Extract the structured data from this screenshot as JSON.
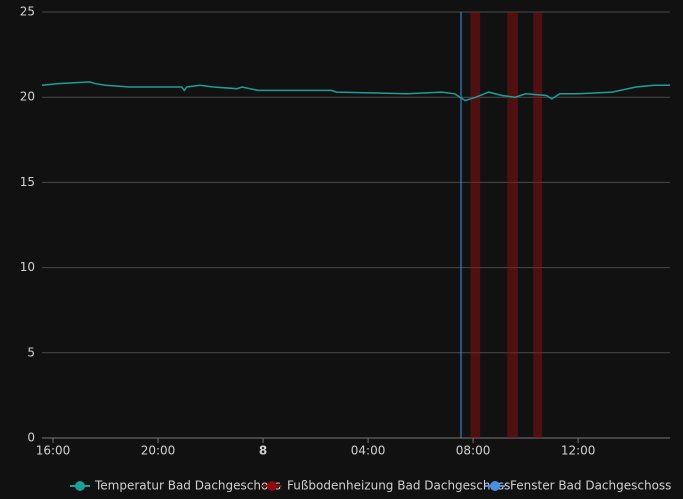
{
  "chart_data": {
    "type": "history",
    "xlim": [
      15.58,
      39.5
    ],
    "xticks": [
      {
        "value": 16,
        "label": "16:00"
      },
      {
        "value": 20,
        "label": "20:00"
      },
      {
        "value": 24,
        "label": "8"
      },
      {
        "value": 28,
        "label": "04:00"
      },
      {
        "value": 32,
        "label": "08:00"
      },
      {
        "value": 36,
        "label": "12:00"
      }
    ],
    "ylim": [
      0,
      25
    ],
    "yticks": [
      0,
      5,
      10,
      15,
      20,
      25
    ],
    "grid": true,
    "legend": "bottom",
    "series": [
      {
        "name": "Temperatur Bad Dachgeschoss",
        "color": "#1f9e98",
        "x": [
          15.58,
          16.2,
          17.4,
          17.6,
          18.0,
          18.9,
          20.9,
          21.0,
          21.1,
          21.6,
          22.1,
          23.0,
          23.2,
          23.8,
          26.6,
          26.8,
          29.5,
          30.8,
          31.3,
          31.7,
          32.1,
          32.6,
          33.1,
          33.6,
          34.0,
          34.8,
          35.0,
          35.3,
          36.0,
          37.3,
          38.2,
          38.9,
          39.5
        ],
        "values": [
          20.7,
          20.8,
          20.9,
          20.8,
          20.7,
          20.6,
          20.6,
          20.4,
          20.6,
          20.7,
          20.6,
          20.5,
          20.6,
          20.4,
          20.4,
          20.3,
          20.2,
          20.3,
          20.2,
          19.8,
          20.0,
          20.3,
          20.1,
          20.0,
          20.2,
          20.1,
          19.9,
          20.2,
          20.2,
          20.3,
          20.6,
          20.7,
          20.7
        ]
      },
      {
        "name": "Fußbodenheizung Bad Dachgeschoss",
        "color": "#8b0f0f",
        "periods": [
          [
            31.9,
            32.27
          ],
          [
            33.3,
            33.71
          ],
          [
            34.29,
            34.63
          ]
        ]
      },
      {
        "name": "Fenster Bad Dachgeschoss",
        "color": "#4a90e2",
        "periods": [
          [
            31.5,
            31.58
          ]
        ]
      }
    ]
  }
}
